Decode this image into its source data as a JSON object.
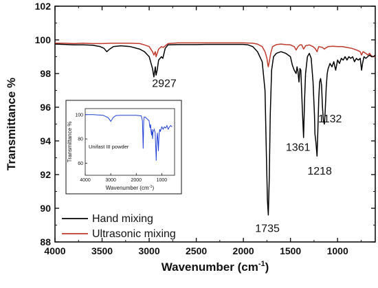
{
  "chart_data": [
    {
      "type": "line",
      "xlabel_main": "Wavenumber (cm",
      "xlabel_sup": "-1",
      "xlabel_end": ")",
      "ylabel": "Transmittance %",
      "xlim": [
        4000,
        600
      ],
      "ylim": [
        88,
        102
      ],
      "x_reversed": true,
      "x_ticks": [
        4000,
        3500,
        3000,
        2500,
        2000,
        1500,
        1000
      ],
      "y_ticks": [
        88,
        90,
        92,
        94,
        96,
        98,
        100,
        102
      ],
      "legend_position": "bottom-left",
      "annotations": [
        {
          "text": "2927",
          "x": 2840,
          "y": 97.2
        },
        {
          "text": "1735",
          "x": 1745,
          "y": 88.6
        },
        {
          "text": "1361",
          "x": 1420,
          "y": 93.4
        },
        {
          "text": "1218",
          "x": 1190,
          "y": 92.0
        },
        {
          "text": "1132",
          "x": 1080,
          "y": 95.1
        }
      ],
      "series": [
        {
          "name": "Hand mixing",
          "color": "#000000",
          "points": [
            [
              4000,
              99.75
            ],
            [
              3900,
              99.73
            ],
            [
              3800,
              99.7
            ],
            [
              3700,
              99.7
            ],
            [
              3600,
              99.68
            ],
            [
              3520,
              99.6
            ],
            [
              3480,
              99.5
            ],
            [
              3450,
              99.3
            ],
            [
              3420,
              99.45
            ],
            [
              3380,
              99.6
            ],
            [
              3300,
              99.65
            ],
            [
              3200,
              99.6
            ],
            [
              3100,
              99.45
            ],
            [
              3050,
              99.3
            ],
            [
              3000,
              99.0
            ],
            [
              2965,
              98.3
            ],
            [
              2950,
              97.8
            ],
            [
              2935,
              98.4
            ],
            [
              2927,
              97.9
            ],
            [
              2915,
              98.2
            ],
            [
              2900,
              98.8
            ],
            [
              2870,
              99.0
            ],
            [
              2855,
              98.9
            ],
            [
              2830,
              99.5
            ],
            [
              2800,
              99.7
            ],
            [
              2700,
              99.72
            ],
            [
              2600,
              99.72
            ],
            [
              2500,
              99.72
            ],
            [
              2400,
              99.73
            ],
            [
              2300,
              99.73
            ],
            [
              2200,
              99.73
            ],
            [
              2100,
              99.73
            ],
            [
              2000,
              99.73
            ],
            [
              1950,
              99.7
            ],
            [
              1900,
              99.6
            ],
            [
              1850,
              99.3
            ],
            [
              1800,
              98.7
            ],
            [
              1770,
              97.0
            ],
            [
              1755,
              93.0
            ],
            [
              1745,
              90.5
            ],
            [
              1735,
              89.6
            ],
            [
              1725,
              91.8
            ],
            [
              1715,
              95.5
            ],
            [
              1700,
              98.2
            ],
            [
              1680,
              99.0
            ],
            [
              1650,
              99.2
            ],
            [
              1600,
              99.3
            ],
            [
              1550,
              99.2
            ],
            [
              1500,
              99.0
            ],
            [
              1480,
              98.5
            ],
            [
              1460,
              98.2
            ],
            [
              1440,
              98.0
            ],
            [
              1430,
              98.4
            ],
            [
              1420,
              98.1
            ],
            [
              1410,
              97.5
            ],
            [
              1400,
              98.3
            ],
            [
              1390,
              98.2
            ],
            [
              1375,
              96.0
            ],
            [
              1361,
              94.2
            ],
            [
              1350,
              96.5
            ],
            [
              1340,
              98.0
            ],
            [
              1320,
              99.0
            ],
            [
              1300,
              99.2
            ],
            [
              1280,
              98.9
            ],
            [
              1260,
              97.5
            ],
            [
              1245,
              95.5
            ],
            [
              1240,
              94.4
            ],
            [
              1230,
              93.9
            ],
            [
              1218,
              93.1
            ],
            [
              1210,
              94.5
            ],
            [
              1200,
              96.5
            ],
            [
              1190,
              97.5
            ],
            [
              1180,
              97.7
            ],
            [
              1170,
              97.3
            ],
            [
              1160,
              96.0
            ],
            [
              1150,
              95.2
            ],
            [
              1140,
              95.0
            ],
            [
              1132,
              95.7
            ],
            [
              1120,
              97.2
            ],
            [
              1110,
              98.0
            ],
            [
              1100,
              98.3
            ],
            [
              1080,
              98.6
            ],
            [
              1060,
              98.4
            ],
            [
              1040,
              98.7
            ],
            [
              1020,
              98.2
            ],
            [
              1000,
              98.8
            ],
            [
              980,
              98.6
            ],
            [
              960,
              98.9
            ],
            [
              940,
              98.8
            ],
            [
              920,
              99.0
            ],
            [
              900,
              98.8
            ],
            [
              880,
              99.0
            ],
            [
              860,
              98.9
            ],
            [
              840,
              99.0
            ],
            [
              820,
              98.7
            ],
            [
              800,
              98.9
            ],
            [
              780,
              98.8
            ],
            [
              760,
              98.9
            ],
            [
              745,
              98.2
            ],
            [
              735,
              98.6
            ],
            [
              720,
              99.0
            ],
            [
              700,
              98.9
            ],
            [
              680,
              99.0
            ],
            [
              660,
              99.1
            ],
            [
              640,
              99.0
            ],
            [
              620,
              99.0
            ],
            [
              600,
              99.1
            ]
          ]
        },
        {
          "name": "Ultrasonic mixing",
          "color": "#c0392b",
          "points": [
            [
              4000,
              99.8
            ],
            [
              3900,
              99.8
            ],
            [
              3800,
              99.78
            ],
            [
              3700,
              99.8
            ],
            [
              3600,
              99.78
            ],
            [
              3500,
              99.78
            ],
            [
              3400,
              99.8
            ],
            [
              3300,
              99.8
            ],
            [
              3200,
              99.8
            ],
            [
              3100,
              99.78
            ],
            [
              3050,
              99.7
            ],
            [
              3000,
              99.6
            ],
            [
              2965,
              99.3
            ],
            [
              2950,
              99.1
            ],
            [
              2935,
              99.3
            ],
            [
              2927,
              99.0
            ],
            [
              2915,
              99.2
            ],
            [
              2900,
              99.45
            ],
            [
              2870,
              99.6
            ],
            [
              2850,
              99.55
            ],
            [
              2800,
              99.78
            ],
            [
              2700,
              99.82
            ],
            [
              2600,
              99.82
            ],
            [
              2500,
              99.82
            ],
            [
              2400,
              99.82
            ],
            [
              2300,
              99.82
            ],
            [
              2200,
              99.82
            ],
            [
              2100,
              99.82
            ],
            [
              2000,
              99.82
            ],
            [
              1900,
              99.8
            ],
            [
              1850,
              99.75
            ],
            [
              1800,
              99.6
            ],
            [
              1770,
              99.3
            ],
            [
              1750,
              98.9
            ],
            [
              1740,
              98.5
            ],
            [
              1735,
              98.4
            ],
            [
              1725,
              98.7
            ],
            [
              1710,
              99.2
            ],
            [
              1690,
              99.6
            ],
            [
              1650,
              99.72
            ],
            [
              1600,
              99.75
            ],
            [
              1550,
              99.72
            ],
            [
              1500,
              99.7
            ],
            [
              1460,
              99.6
            ],
            [
              1440,
              99.4
            ],
            [
              1420,
              99.6
            ],
            [
              1400,
              99.7
            ],
            [
              1380,
              99.7
            ],
            [
              1361,
              99.45
            ],
            [
              1340,
              99.65
            ],
            [
              1300,
              99.7
            ],
            [
              1260,
              99.6
            ],
            [
              1240,
              99.5
            ],
            [
              1218,
              99.3
            ],
            [
              1200,
              99.6
            ],
            [
              1160,
              99.55
            ],
            [
              1140,
              99.45
            ],
            [
              1132,
              99.5
            ],
            [
              1100,
              99.6
            ],
            [
              1050,
              99.62
            ],
            [
              1000,
              99.6
            ],
            [
              950,
              99.6
            ],
            [
              900,
              99.55
            ],
            [
              850,
              99.5
            ],
            [
              800,
              99.4
            ],
            [
              760,
              99.3
            ],
            [
              745,
              99.1
            ],
            [
              730,
              99.3
            ],
            [
              700,
              99.2
            ],
            [
              680,
              99.1
            ],
            [
              660,
              99.2
            ],
            [
              640,
              99.05
            ],
            [
              620,
              99.0
            ],
            [
              600,
              99.0
            ]
          ]
        }
      ]
    },
    {
      "type": "line",
      "ylabel": "Transmittance %",
      "xlabel_main": "Wavenumber (cm",
      "xlabel_sup": "-1",
      "xlabel_end": ")",
      "annotation": "Unifast III powder",
      "xlim": [
        4000,
        500
      ],
      "ylim": [
        50,
        105
      ],
      "x_reversed": true,
      "x_ticks": [
        4000,
        3000,
        2000,
        1000
      ],
      "y_ticks": [
        60,
        80,
        100
      ],
      "series": [
        {
          "color": "#1f3fd6",
          "points": [
            [
              4000,
              100
            ],
            [
              3700,
              100
            ],
            [
              3500,
              99.8
            ],
            [
              3300,
              99.5
            ],
            [
              3100,
              97.5
            ],
            [
              3000,
              94.5
            ],
            [
              2950,
              96.0
            ],
            [
              2900,
              97.8
            ],
            [
              2800,
              99.3
            ],
            [
              2600,
              99.5
            ],
            [
              2400,
              99.5
            ],
            [
              2200,
              99.5
            ],
            [
              2000,
              99.5
            ],
            [
              1800,
              99
            ],
            [
              1760,
              95
            ],
            [
              1740,
              82
            ],
            [
              1730,
              72
            ],
            [
              1722,
              80
            ],
            [
              1710,
              95
            ],
            [
              1690,
              98
            ],
            [
              1650,
              98
            ],
            [
              1600,
              97
            ],
            [
              1500,
              95
            ],
            [
              1480,
              92
            ],
            [
              1460,
              89
            ],
            [
              1440,
              92
            ],
            [
              1420,
              86
            ],
            [
              1400,
              83
            ],
            [
              1380,
              88
            ],
            [
              1361,
              80
            ],
            [
              1350,
              85
            ],
            [
              1300,
              88
            ],
            [
              1260,
              85
            ],
            [
              1240,
              74
            ],
            [
              1225,
              66
            ],
            [
              1218,
              62
            ],
            [
              1210,
              70
            ],
            [
              1190,
              80
            ],
            [
              1170,
              85
            ],
            [
              1150,
              78
            ],
            [
              1132,
              70
            ],
            [
              1120,
              78
            ],
            [
              1100,
              85
            ],
            [
              1080,
              88
            ],
            [
              1060,
              86
            ],
            [
              1000,
              90
            ],
            [
              950,
              88
            ],
            [
              900,
              90
            ],
            [
              850,
              89
            ],
            [
              800,
              91
            ],
            [
              750,
              88
            ],
            [
              700,
              90
            ],
            [
              650,
              91
            ],
            [
              600,
              90
            ]
          ]
        }
      ]
    }
  ]
}
